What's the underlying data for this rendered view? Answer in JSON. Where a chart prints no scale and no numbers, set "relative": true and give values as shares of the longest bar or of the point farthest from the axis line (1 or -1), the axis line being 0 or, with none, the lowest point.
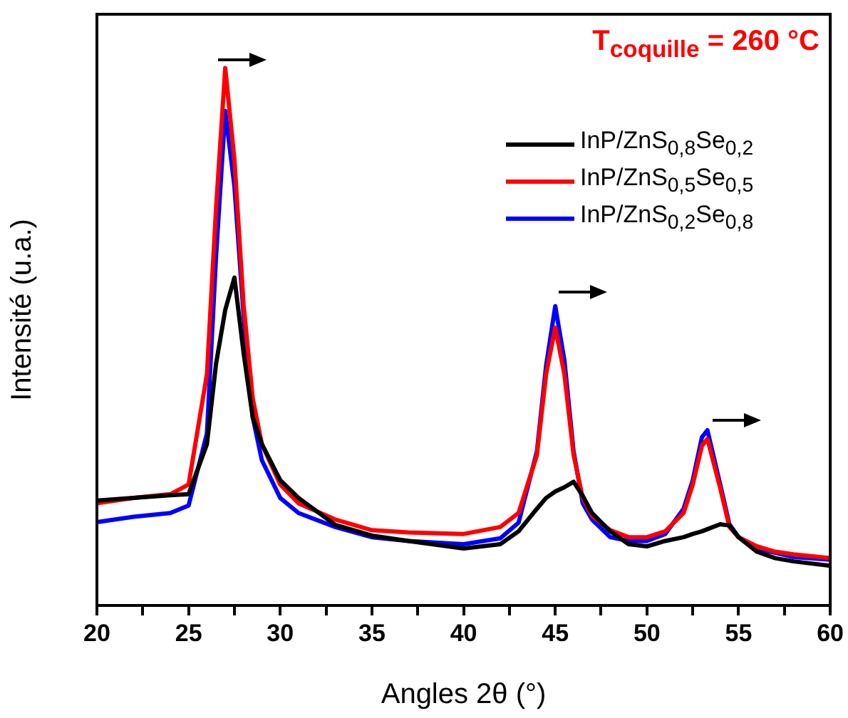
{
  "chart_data": {
    "type": "line",
    "title": "T$_{coquille}$ = 260 °C",
    "xlabel": "Angles 2θ (°)",
    "ylabel": "Intensité (u.a.)",
    "relative": true,
    "legend": "top right",
    "marker": "none",
    "line_style": "solid",
    "grid": false,
    "xlim": [
      20,
      60
    ],
    "xticks": [
      20,
      {
        "value": 22.5,
        "label": null
      },
      25,
      {
        "value": 27.5,
        "label": null
      },
      30,
      {
        "value": 32.5,
        "label": null
      },
      35,
      {
        "value": 37.5,
        "label": null
      },
      40,
      {
        "value": 42.5,
        "label": null
      },
      45,
      {
        "value": 47.5,
        "label": null
      },
      50,
      {
        "value": 52.5,
        "label": null
      },
      55,
      {
        "value": 57.5,
        "label": null
      },
      60
    ],
    "x": [
      20,
      22,
      24,
      25,
      26,
      26.5,
      27,
      27.5,
      28,
      28.5,
      29,
      30,
      31,
      33,
      35,
      37,
      40,
      42,
      43,
      44,
      44.5,
      45,
      45.5,
      46,
      46.5,
      47,
      48,
      49,
      50,
      51,
      52,
      52.5,
      53,
      53.3,
      54,
      54.5,
      55,
      56,
      57,
      58,
      60
    ],
    "series": [
      {
        "name": "InP/ZnS$_{0,8}$Se$_{0,2}$",
        "color": "#000000",
        "values": [
          0.195,
          0.2,
          0.205,
          0.207,
          0.3,
          0.45,
          0.55,
          0.61,
          0.47,
          0.35,
          0.3,
          0.233,
          0.2,
          0.15,
          0.13,
          0.12,
          0.106,
          0.114,
          0.138,
          0.18,
          0.2,
          0.212,
          0.22,
          0.23,
          0.204,
          0.172,
          0.138,
          0.114,
          0.11,
          0.12,
          0.127,
          0.133,
          0.138,
          0.142,
          0.151,
          0.149,
          0.127,
          0.1,
          0.088,
          0.082,
          0.074
        ]
      },
      {
        "name": "InP/ZnS$_{0,5}$Se$_{0,5}$",
        "color": "#ff0000",
        "values": [
          0.19,
          0.2,
          0.207,
          0.225,
          0.43,
          0.74,
          1,
          0.83,
          0.56,
          0.385,
          0.3,
          0.225,
          0.19,
          0.16,
          0.14,
          0.136,
          0.133,
          0.146,
          0.172,
          0.28,
          0.43,
          0.517,
          0.43,
          0.28,
          0.2,
          0.167,
          0.14,
          0.127,
          0.127,
          0.138,
          0.172,
          0.225,
          0.297,
          0.31,
          0.218,
          0.146,
          0.127,
          0.11,
          0.1,
          0.095,
          0.088
        ]
      },
      {
        "name": "InP/ZnS$_{0,2}$Se$_{0,8}$",
        "color": "#0000ff",
        "values": [
          0.155,
          0.165,
          0.172,
          0.186,
          0.32,
          0.65,
          0.92,
          0.78,
          0.54,
          0.35,
          0.27,
          0.2,
          0.172,
          0.146,
          0.127,
          0.12,
          0.114,
          0.125,
          0.154,
          0.287,
          0.446,
          0.557,
          0.456,
          0.287,
          0.19,
          0.16,
          0.127,
          0.12,
          0.12,
          0.133,
          0.18,
          0.233,
          0.313,
          0.326,
          0.225,
          0.151,
          0.127,
          0.106,
          0.098,
          0.09,
          0.085
        ]
      }
    ]
  }
}
